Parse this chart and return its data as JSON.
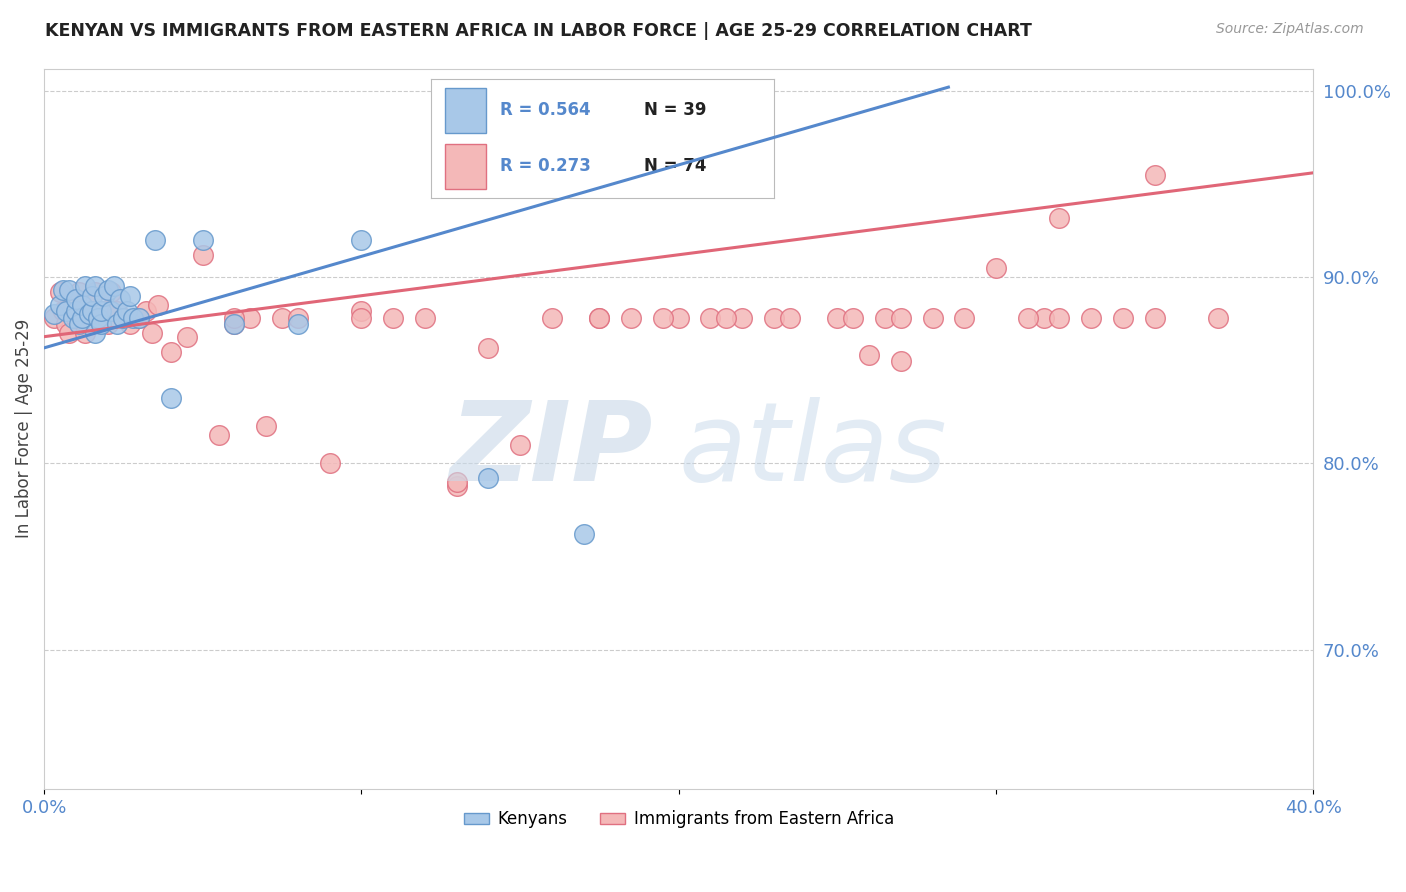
{
  "title": "KENYAN VS IMMIGRANTS FROM EASTERN AFRICA IN LABOR FORCE | AGE 25-29 CORRELATION CHART",
  "source": "Source: ZipAtlas.com",
  "ylabel": "In Labor Force | Age 25-29",
  "x_min": 0.0,
  "x_max": 0.4,
  "y_min": 0.625,
  "y_max": 1.012,
  "x_ticks": [
    0.0,
    0.1,
    0.2,
    0.3,
    0.4
  ],
  "x_tick_labels": [
    "0.0%",
    "",
    "",
    "",
    "40.0%"
  ],
  "y_ticks_right": [
    0.7,
    0.8,
    0.9,
    1.0
  ],
  "y_tick_labels_right": [
    "70.0%",
    "80.0%",
    "90.0%",
    "100.0%"
  ],
  "blue_color": "#a8c8e8",
  "pink_color": "#f4b8b8",
  "blue_edge_color": "#6699cc",
  "pink_edge_color": "#e07080",
  "blue_line_color": "#5588cc",
  "pink_line_color": "#e06677",
  "blue_R": "R = 0.564",
  "blue_N": "N = 39",
  "pink_R": "R = 0.273",
  "pink_N": "N = 74",
  "blue_line_x0": 0.0,
  "blue_line_y0": 0.862,
  "blue_line_x1": 0.285,
  "blue_line_y1": 1.002,
  "pink_line_x0": 0.0,
  "pink_line_y0": 0.868,
  "pink_line_x1": 0.4,
  "pink_line_y1": 0.956,
  "blue_scatter_x": [
    0.003,
    0.005,
    0.006,
    0.007,
    0.008,
    0.009,
    0.01,
    0.01,
    0.011,
    0.012,
    0.012,
    0.013,
    0.014,
    0.015,
    0.015,
    0.016,
    0.016,
    0.017,
    0.018,
    0.018,
    0.019,
    0.02,
    0.021,
    0.022,
    0.023,
    0.024,
    0.025,
    0.026,
    0.027,
    0.028,
    0.03,
    0.035,
    0.04,
    0.05,
    0.06,
    0.08,
    0.1,
    0.14,
    0.17
  ],
  "blue_scatter_y": [
    0.88,
    0.885,
    0.893,
    0.882,
    0.893,
    0.878,
    0.882,
    0.888,
    0.875,
    0.878,
    0.885,
    0.895,
    0.88,
    0.882,
    0.89,
    0.87,
    0.895,
    0.878,
    0.875,
    0.882,
    0.89,
    0.893,
    0.882,
    0.895,
    0.875,
    0.888,
    0.878,
    0.882,
    0.89,
    0.878,
    0.878,
    0.92,
    0.835,
    0.92,
    0.875,
    0.875,
    0.92,
    0.792,
    0.762
  ],
  "pink_scatter_x": [
    0.003,
    0.005,
    0.006,
    0.007,
    0.008,
    0.009,
    0.01,
    0.011,
    0.012,
    0.013,
    0.014,
    0.015,
    0.016,
    0.017,
    0.018,
    0.019,
    0.02,
    0.021,
    0.022,
    0.023,
    0.025,
    0.027,
    0.03,
    0.032,
    0.034,
    0.036,
    0.04,
    0.045,
    0.05,
    0.055,
    0.06,
    0.065,
    0.07,
    0.075,
    0.08,
    0.09,
    0.1,
    0.11,
    0.12,
    0.13,
    0.14,
    0.16,
    0.175,
    0.185,
    0.2,
    0.21,
    0.22,
    0.23,
    0.25,
    0.265,
    0.28,
    0.29,
    0.3,
    0.315,
    0.33,
    0.34,
    0.35,
    0.175,
    0.195,
    0.215,
    0.235,
    0.255,
    0.31,
    0.32,
    0.26,
    0.27,
    0.35,
    0.37,
    0.06,
    0.1,
    0.13,
    0.15,
    0.27,
    0.32
  ],
  "pink_scatter_y": [
    0.878,
    0.892,
    0.882,
    0.875,
    0.87,
    0.885,
    0.878,
    0.892,
    0.882,
    0.87,
    0.885,
    0.882,
    0.892,
    0.878,
    0.875,
    0.882,
    0.875,
    0.892,
    0.878,
    0.882,
    0.878,
    0.875,
    0.878,
    0.882,
    0.87,
    0.885,
    0.86,
    0.868,
    0.912,
    0.815,
    0.875,
    0.878,
    0.82,
    0.878,
    0.878,
    0.8,
    0.882,
    0.878,
    0.878,
    0.788,
    0.862,
    0.878,
    0.878,
    0.878,
    0.878,
    0.878,
    0.878,
    0.878,
    0.878,
    0.878,
    0.878,
    0.878,
    0.905,
    0.878,
    0.878,
    0.878,
    0.878,
    0.878,
    0.878,
    0.878,
    0.878,
    0.878,
    0.878,
    0.878,
    0.858,
    0.878,
    0.955,
    0.878,
    0.878,
    0.878,
    0.79,
    0.81,
    0.855,
    0.932
  ]
}
